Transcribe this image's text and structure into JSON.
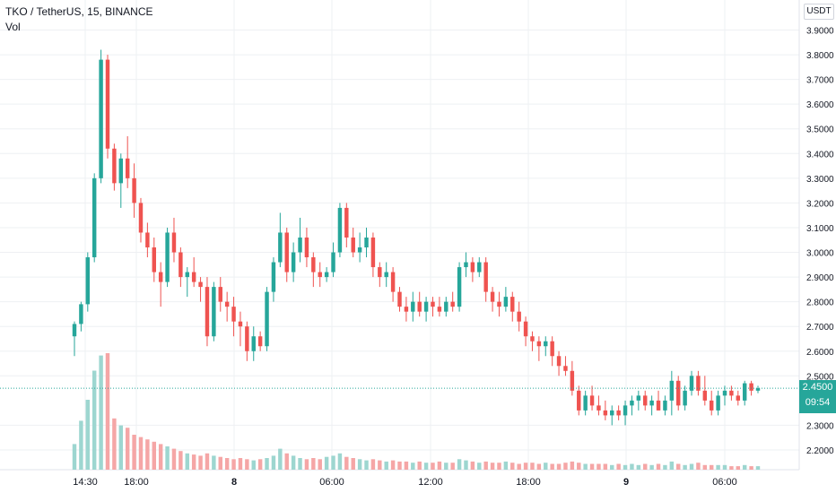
{
  "legend": {
    "symbol_line": "TKO / TetherUS, 15, BINANCE",
    "volume_label": "Vol"
  },
  "currency_button": "USDT",
  "last_price": {
    "value": "2.4500",
    "countdown": "09:54"
  },
  "colors": {
    "up": "#26a69a",
    "down": "#ef5350",
    "up_volume": "#9dd6d0",
    "down_volume": "#f5a6a6",
    "grid": "#eef0f3",
    "axis_text": "#131722"
  },
  "chart_data": {
    "type": "candlestick",
    "symbol": "TKO / TetherUS",
    "interval": "15",
    "exchange": "BINANCE",
    "y_axis": {
      "ticks": [
        "3.9000",
        "3.8000",
        "3.7000",
        "3.6000",
        "3.5000",
        "3.4000",
        "3.3000",
        "3.2000",
        "3.1000",
        "3.0000",
        "2.9000",
        "2.8000",
        "2.7000",
        "2.6000",
        "2.5000",
        "2.3000",
        "2.2000"
      ],
      "range": [
        2.16,
        3.92
      ]
    },
    "x_axis": {
      "ticks": [
        "14:30",
        "18:00",
        "8",
        "06:00",
        "12:00",
        "18:00",
        "9",
        "06:00"
      ]
    },
    "candles": [
      [
        2.66,
        2.72,
        2.58,
        2.71
      ],
      [
        2.71,
        2.8,
        2.68,
        2.79
      ],
      [
        2.79,
        3.0,
        2.76,
        2.98
      ],
      [
        2.98,
        3.32,
        2.96,
        3.3
      ],
      [
        3.3,
        3.82,
        3.28,
        3.78
      ],
      [
        3.78,
        3.8,
        3.38,
        3.42
      ],
      [
        3.42,
        3.44,
        3.25,
        3.28
      ],
      [
        3.28,
        3.4,
        3.18,
        3.38
      ],
      [
        3.38,
        3.47,
        3.26,
        3.3
      ],
      [
        3.3,
        3.36,
        3.14,
        3.2
      ],
      [
        3.2,
        3.22,
        3.04,
        3.08
      ],
      [
        3.08,
        3.12,
        2.98,
        3.02
      ],
      [
        3.02,
        3.06,
        2.88,
        2.92
      ],
      [
        2.92,
        2.96,
        2.78,
        2.88
      ],
      [
        2.88,
        3.1,
        2.86,
        3.08
      ],
      [
        3.08,
        3.14,
        2.96,
        3.0
      ],
      [
        3.0,
        3.02,
        2.86,
        2.9
      ],
      [
        2.9,
        2.94,
        2.82,
        2.92
      ],
      [
        2.92,
        2.98,
        2.86,
        2.88
      ],
      [
        2.88,
        2.9,
        2.8,
        2.86
      ],
      [
        2.86,
        2.9,
        2.62,
        2.66
      ],
      [
        2.66,
        2.88,
        2.64,
        2.86
      ],
      [
        2.86,
        2.9,
        2.76,
        2.8
      ],
      [
        2.8,
        2.84,
        2.72,
        2.78
      ],
      [
        2.78,
        2.82,
        2.66,
        2.72
      ],
      [
        2.72,
        2.76,
        2.62,
        2.7
      ],
      [
        2.7,
        2.72,
        2.56,
        2.6
      ],
      [
        2.6,
        2.7,
        2.56,
        2.66
      ],
      [
        2.66,
        2.68,
        2.6,
        2.62
      ],
      [
        2.62,
        2.86,
        2.6,
        2.84
      ],
      [
        2.84,
        2.98,
        2.8,
        2.96
      ],
      [
        2.96,
        3.16,
        2.94,
        3.08
      ],
      [
        3.08,
        3.1,
        2.88,
        2.92
      ],
      [
        2.92,
        3.04,
        2.88,
        3.0
      ],
      [
        3.0,
        3.14,
        2.96,
        3.06
      ],
      [
        3.06,
        3.1,
        2.94,
        2.98
      ],
      [
        2.98,
        3.0,
        2.86,
        2.92
      ],
      [
        2.92,
        2.96,
        2.86,
        2.9
      ],
      [
        2.9,
        2.94,
        2.88,
        2.92
      ],
      [
        2.92,
        3.04,
        2.9,
        3.0
      ],
      [
        3.0,
        3.2,
        2.98,
        3.18
      ],
      [
        3.18,
        3.2,
        3.02,
        3.06
      ],
      [
        3.06,
        3.1,
        2.98,
        3.0
      ],
      [
        3.0,
        3.08,
        2.96,
        3.02
      ],
      [
        3.02,
        3.1,
        2.98,
        3.06
      ],
      [
        3.06,
        3.08,
        2.9,
        2.94
      ],
      [
        2.94,
        2.96,
        2.86,
        2.9
      ],
      [
        2.9,
        2.96,
        2.86,
        2.92
      ],
      [
        2.92,
        2.94,
        2.8,
        2.84
      ],
      [
        2.84,
        2.86,
        2.76,
        2.78
      ],
      [
        2.78,
        2.82,
        2.72,
        2.76
      ],
      [
        2.76,
        2.84,
        2.72,
        2.8
      ],
      [
        2.8,
        2.84,
        2.74,
        2.76
      ],
      [
        2.76,
        2.82,
        2.72,
        2.8
      ],
      [
        2.8,
        2.82,
        2.74,
        2.78
      ],
      [
        2.78,
        2.82,
        2.74,
        2.76
      ],
      [
        2.76,
        2.82,
        2.74,
        2.8
      ],
      [
        2.8,
        2.84,
        2.76,
        2.78
      ],
      [
        2.78,
        2.96,
        2.76,
        2.94
      ],
      [
        2.94,
        3.0,
        2.9,
        2.96
      ],
      [
        2.96,
        2.98,
        2.88,
        2.92
      ],
      [
        2.92,
        2.98,
        2.9,
        2.96
      ],
      [
        2.96,
        2.98,
        2.8,
        2.84
      ],
      [
        2.84,
        2.86,
        2.76,
        2.8
      ],
      [
        2.8,
        2.84,
        2.74,
        2.78
      ],
      [
        2.78,
        2.86,
        2.76,
        2.82
      ],
      [
        2.82,
        2.84,
        2.72,
        2.76
      ],
      [
        2.76,
        2.8,
        2.68,
        2.72
      ],
      [
        2.72,
        2.74,
        2.62,
        2.66
      ],
      [
        2.66,
        2.68,
        2.6,
        2.64
      ],
      [
        2.64,
        2.66,
        2.56,
        2.62
      ],
      [
        2.62,
        2.66,
        2.58,
        2.64
      ],
      [
        2.64,
        2.66,
        2.54,
        2.58
      ],
      [
        2.58,
        2.6,
        2.5,
        2.54
      ],
      [
        2.54,
        2.58,
        2.5,
        2.52
      ],
      [
        2.52,
        2.56,
        2.42,
        2.44
      ],
      [
        2.44,
        2.46,
        2.34,
        2.36
      ],
      [
        2.36,
        2.44,
        2.34,
        2.42
      ],
      [
        2.42,
        2.46,
        2.36,
        2.38
      ],
      [
        2.38,
        2.42,
        2.34,
        2.36
      ],
      [
        2.36,
        2.4,
        2.32,
        2.34
      ],
      [
        2.34,
        2.38,
        2.3,
        2.36
      ],
      [
        2.36,
        2.38,
        2.32,
        2.34
      ],
      [
        2.34,
        2.4,
        2.3,
        2.38
      ],
      [
        2.38,
        2.42,
        2.34,
        2.4
      ],
      [
        2.4,
        2.44,
        2.36,
        2.42
      ],
      [
        2.42,
        2.44,
        2.36,
        2.38
      ],
      [
        2.38,
        2.42,
        2.34,
        2.4
      ],
      [
        2.4,
        2.44,
        2.36,
        2.36
      ],
      [
        2.36,
        2.42,
        2.34,
        2.4
      ],
      [
        2.4,
        2.52,
        2.34,
        2.48
      ],
      [
        2.48,
        2.5,
        2.36,
        2.38
      ],
      [
        2.38,
        2.46,
        2.36,
        2.44
      ],
      [
        2.44,
        2.52,
        2.42,
        2.5
      ],
      [
        2.5,
        2.52,
        2.42,
        2.44
      ],
      [
        2.44,
        2.5,
        2.38,
        2.4
      ],
      [
        2.4,
        2.44,
        2.34,
        2.36
      ],
      [
        2.36,
        2.44,
        2.34,
        2.42
      ],
      [
        2.42,
        2.46,
        2.38,
        2.44
      ],
      [
        2.44,
        2.46,
        2.4,
        2.42
      ],
      [
        2.42,
        2.44,
        2.38,
        2.4
      ],
      [
        2.4,
        2.48,
        2.38,
        2.47
      ],
      [
        2.47,
        2.48,
        2.42,
        2.44
      ],
      [
        2.44,
        2.46,
        2.43,
        2.45
      ]
    ],
    "volume": [
      22,
      42,
      60,
      85,
      98,
      100,
      44,
      38,
      36,
      30,
      28,
      26,
      24,
      22,
      20,
      18,
      16,
      14,
      13,
      12,
      14,
      12,
      11,
      10,
      9,
      10,
      9,
      8,
      9,
      10,
      12,
      18,
      14,
      12,
      10,
      9,
      10,
      9,
      11,
      12,
      14,
      11,
      10,
      9,
      8,
      9,
      8,
      7,
      8,
      7,
      7,
      6,
      7,
      6,
      6,
      7,
      6,
      6,
      9,
      8,
      7,
      6,
      7,
      6,
      6,
      7,
      6,
      5,
      6,
      6,
      5,
      6,
      5,
      5,
      6,
      7,
      6,
      5,
      5,
      5,
      5,
      4,
      5,
      4,
      5,
      4,
      5,
      4,
      5,
      4,
      7,
      5,
      4,
      5,
      6,
      4,
      4,
      4,
      4,
      3,
      3,
      4,
      3,
      3
    ]
  }
}
